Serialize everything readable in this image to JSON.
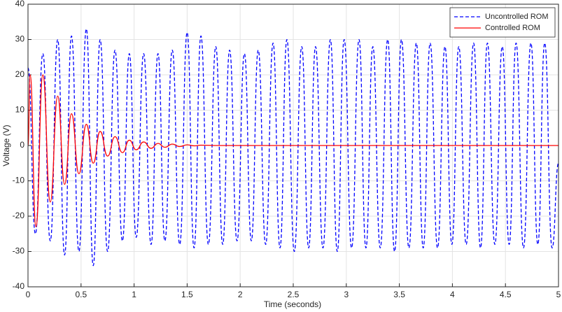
{
  "chart_data": {
    "type": "line",
    "xlabel": "Time (seconds)",
    "ylabel": "Voltage (V)",
    "xlim": [
      0,
      5
    ],
    "xticks": [
      0,
      0.5,
      1,
      1.5,
      2,
      2.5,
      3,
      3.5,
      4,
      4.5,
      5
    ],
    "ylim": [
      -40,
      40
    ],
    "yticks": [
      -40,
      -30,
      -20,
      -10,
      0,
      10,
      20,
      30,
      40
    ],
    "grid": true,
    "legend_position": "northeast",
    "series": [
      {
        "name": "Uncontrolled ROM",
        "color": "#0000ff",
        "linestyle": "dashed",
        "x": [
          0,
          0.07,
          0.14,
          0.21,
          0.28,
          0.345,
          0.41,
          0.48,
          0.55,
          0.615,
          0.68,
          0.75,
          0.82,
          0.89,
          0.955,
          1.02,
          1.09,
          1.16,
          1.225,
          1.29,
          1.36,
          1.43,
          1.5,
          1.565,
          1.63,
          1.7,
          1.77,
          1.835,
          1.9,
          1.97,
          2.04,
          2.105,
          2.17,
          2.24,
          2.31,
          2.375,
          2.44,
          2.51,
          2.58,
          2.645,
          2.71,
          2.78,
          2.85,
          2.915,
          2.98,
          3.05,
          3.12,
          3.185,
          3.25,
          3.32,
          3.39,
          3.455,
          3.52,
          3.59,
          3.66,
          3.725,
          3.79,
          3.86,
          3.93,
          3.995,
          4.06,
          4.13,
          4.2,
          4.265,
          4.33,
          4.4,
          4.47,
          4.535,
          4.6,
          4.67,
          4.74,
          4.805,
          4.87,
          4.94,
          5
        ],
        "values": [
          22,
          -25,
          26,
          -27,
          30,
          -31,
          31,
          -30,
          33,
          -34,
          30,
          -30,
          27,
          -27,
          26,
          -26,
          26,
          -28,
          26,
          -27,
          27,
          -28,
          32,
          -29,
          31,
          -28,
          28,
          -28,
          27,
          -27,
          26,
          -27,
          27,
          -28,
          29,
          -29,
          30,
          -30,
          28,
          -29,
          28,
          -29,
          30,
          -30,
          30,
          -29,
          30,
          -29,
          28,
          -29,
          30,
          -30,
          30,
          -29,
          29,
          -29,
          29,
          -29,
          28,
          -28,
          28,
          -28,
          29,
          -29,
          29,
          -28,
          28,
          -28,
          29,
          -29,
          29,
          -28,
          29,
          -29,
          -5
        ]
      },
      {
        "name": "Controlled ROM",
        "color": "#ff0000",
        "linestyle": "solid",
        "x": [
          0,
          0.02,
          0.075,
          0.14,
          0.21,
          0.28,
          0.345,
          0.41,
          0.48,
          0.55,
          0.615,
          0.68,
          0.75,
          0.82,
          0.89,
          0.955,
          1.02,
          1.09,
          1.16,
          1.225,
          1.29,
          1.36,
          1.43,
          1.5,
          1.57,
          1.63,
          1.8,
          5
        ],
        "values": [
          0,
          20,
          -23,
          20,
          -16,
          14,
          -11,
          9,
          -8,
          6,
          -5,
          4,
          -3,
          2.5,
          -2,
          1.5,
          -1.2,
          1,
          -0.8,
          0.6,
          -0.5,
          0.4,
          -0.3,
          0.2,
          -0.1,
          0.1,
          0,
          0
        ]
      }
    ]
  }
}
